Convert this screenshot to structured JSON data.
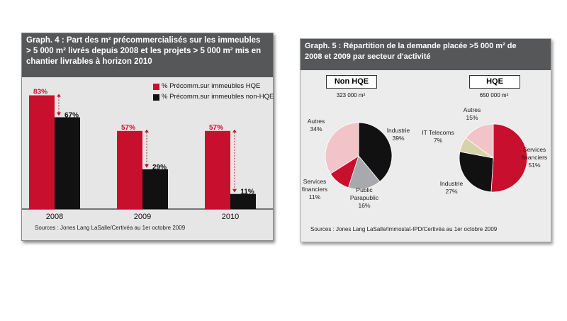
{
  "panel1": {
    "title": "Graph. 4 : Part des m² précommercialisés sur les immeubles\n> 5 000 m² livrés depuis 2008 et les projets > 5 000 m² mis en\nchantier livrables à horizon 2010",
    "source": "Sources : Jones Lang LaSalle/Certivéa au 1er octobre 2009"
  },
  "panel2": {
    "title": "Graph. 5 : Répartition de la demande placée >5 000 m² de\n2008 et 2009 par secteur d'activité",
    "source": "Sources : Jones Lang LaSalle/Immostat-IPD/Certivéa au 1er octobre 2009"
  },
  "chart_data": [
    {
      "type": "bar",
      "categories": [
        "2008",
        "2009",
        "2010"
      ],
      "series": [
        {
          "name": "% Précomm.sur immeubles HQE",
          "values": [
            83,
            57,
            57
          ],
          "labels": [
            "83%",
            "57%",
            "57%"
          ],
          "color": "#c8102e"
        },
        {
          "name": "% Précomm.sur immeubles non-HQE",
          "values": [
            67,
            29,
            11
          ],
          "labels": [
            "67%",
            "29%",
            "11%"
          ],
          "color": "#111111"
        }
      ],
      "ylim": [
        0,
        90
      ]
    },
    {
      "type": "pie",
      "label": "Non HQE",
      "total": "323 000 m²",
      "slices": [
        {
          "name": "Industrie",
          "value": 39,
          "text": "Industrie\n39%",
          "color": "#111111"
        },
        {
          "name": "Public Parapublic",
          "value": 16,
          "text": "Public\nParapublic\n16%",
          "color": "#a7a9ac"
        },
        {
          "name": "Services financiers",
          "value": 11,
          "text": "Services\nfinanciers\n11%",
          "color": "#c8102e"
        },
        {
          "name": "Autres",
          "value": 34,
          "text": "Autres\n34%",
          "color": "#f2c4c9"
        }
      ]
    },
    {
      "type": "pie",
      "label": "HQE",
      "total": "650 000 m²",
      "slices": [
        {
          "name": "Services financiers",
          "value": 51,
          "text": "Services\nfinanciers\n51%",
          "color": "#c8102e"
        },
        {
          "name": "Industrie",
          "value": 27,
          "text": "Industrie\n27%",
          "color": "#111111"
        },
        {
          "name": "IT Telecoms",
          "value": 7,
          "text": "IT Telecoms\n7%",
          "color": "#d6d3a8"
        },
        {
          "name": "Autres",
          "value": 15,
          "text": "Autres\n15%",
          "color": "#f2c4c9"
        }
      ]
    }
  ]
}
